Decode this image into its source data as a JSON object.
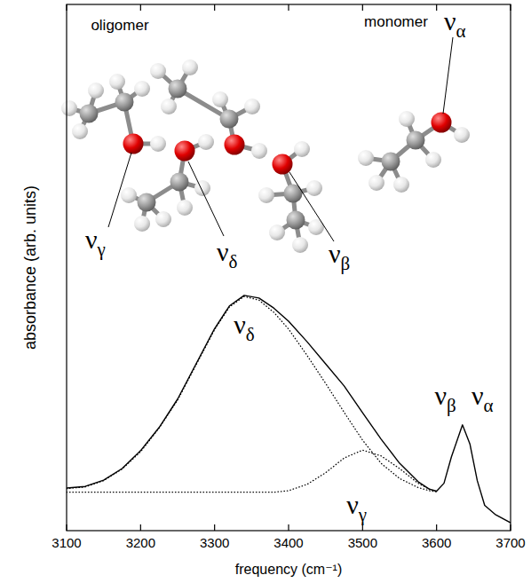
{
  "chart_data": {
    "type": "line",
    "x_label": "frequency (cm⁻¹)",
    "y_label": "absorbance (arb. units)",
    "x": [
      3100,
      3125,
      3150,
      3175,
      3200,
      3225,
      3250,
      3275,
      3300,
      3320,
      3340,
      3360,
      3380,
      3400,
      3425,
      3450,
      3475,
      3500,
      3525,
      3550,
      3575,
      3590,
      3600,
      3610,
      3620,
      3635,
      3645,
      3655,
      3665,
      3680,
      3700
    ],
    "series": [
      {
        "color": "#000000",
        "line_style": "solid",
        "values": [
          8.1,
          8.4,
          9.6,
          11.8,
          15.2,
          19.6,
          25.0,
          31.7,
          38.4,
          42.7,
          44.7,
          44.2,
          42.3,
          39.8,
          35.9,
          31.7,
          27.5,
          22.4,
          17.4,
          12.8,
          9.3,
          7.9,
          7.5,
          9.0,
          14.0,
          20.1,
          16.5,
          9.5,
          4.8,
          3.0,
          1.5
        ]
      },
      {
        "color": "#000000",
        "line_style": "dotted",
        "values": [
          8.0,
          8.3,
          9.5,
          11.7,
          15.0,
          19.5,
          24.8,
          31.5,
          38.2,
          42.5,
          44.5,
          43.8,
          41.5,
          38.3,
          33.3,
          28.0,
          22.5,
          17.2,
          12.8,
          9.9,
          8.2,
          7.6,
          7.4,
          null,
          null,
          null,
          null,
          null,
          null,
          null,
          null
        ]
      },
      {
        "color": "#000000",
        "line_style": "dotted",
        "values": [
          7.3,
          7.3,
          7.3,
          7.3,
          7.3,
          7.3,
          7.3,
          7.3,
          7.3,
          7.3,
          7.3,
          7.3,
          7.3,
          7.6,
          8.8,
          11.0,
          13.8,
          15.3,
          14.2,
          11.8,
          9.0,
          7.9,
          7.4,
          null,
          null,
          null,
          null,
          null,
          null,
          null,
          null
        ]
      }
    ],
    "xlim": [
      3100,
      3700
    ],
    "ylim": [
      0,
      100
    ],
    "xticks": [
      3100,
      3200,
      3300,
      3400,
      3500,
      3600,
      3700
    ],
    "tick_labels": "x",
    "grid": false,
    "annotations": [
      {
        "text": "νδ",
        "x": 3340,
        "y": 37.5
      },
      {
        "text": "νγ",
        "x": 3492,
        "y": 3.2
      },
      {
        "text": "νβ",
        "x": 3612,
        "y": 24
      },
      {
        "text": "να",
        "x": 3662,
        "y": 24
      }
    ],
    "illustration": {
      "captions": [
        "oligomer",
        "monomer"
      ],
      "site_labels": [
        "νγ",
        "νδ",
        "νβ",
        "να"
      ]
    }
  }
}
